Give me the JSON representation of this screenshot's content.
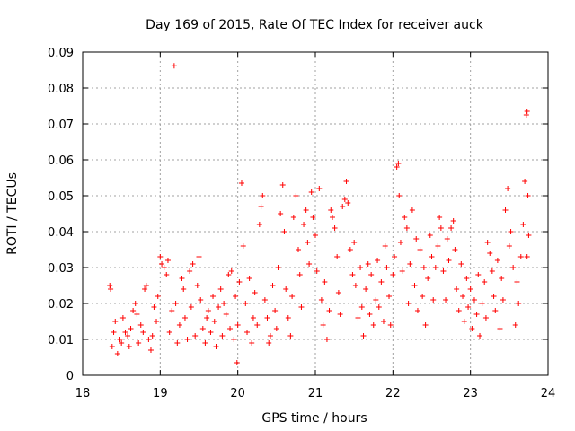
{
  "chart_data": {
    "type": "scatter",
    "title": "Day 169 of 2015, Rate Of TEC Index for receiver auck",
    "xlabel": "GPS time / hours",
    "ylabel": "ROTI / TECUs",
    "xlim": [
      18,
      24
    ],
    "ylim": [
      0,
      0.09
    ],
    "x_ticks": [
      "18",
      "19",
      "20",
      "21",
      "22",
      "23",
      "24"
    ],
    "y_ticks": [
      "0",
      "0.01",
      "0.02",
      "0.03",
      "0.04",
      "0.05",
      "0.06",
      "0.07",
      "0.08",
      "0.09"
    ],
    "x_tick_values": [
      18,
      19,
      20,
      21,
      22,
      23,
      24
    ],
    "y_tick_values": [
      0,
      0.01,
      0.02,
      0.03,
      0.04,
      0.05,
      0.06,
      0.07,
      0.08,
      0.09
    ],
    "grid": true,
    "marker": "+",
    "color": "#ff0000",
    "series": [
      {
        "points": [
          [
            18.35,
            0.025
          ],
          [
            18.36,
            0.024
          ],
          [
            18.38,
            0.008
          ],
          [
            18.4,
            0.012
          ],
          [
            18.42,
            0.015
          ],
          [
            18.45,
            0.006
          ],
          [
            18.48,
            0.01
          ],
          [
            18.5,
            0.009
          ],
          [
            18.52,
            0.016
          ],
          [
            18.55,
            0.012
          ],
          [
            18.58,
            0.011
          ],
          [
            18.6,
            0.008
          ],
          [
            18.62,
            0.013
          ],
          [
            18.65,
            0.018
          ],
          [
            18.68,
            0.02
          ],
          [
            18.7,
            0.017
          ],
          [
            18.72,
            0.009
          ],
          [
            18.75,
            0.014
          ],
          [
            18.78,
            0.012
          ],
          [
            18.8,
            0.024
          ],
          [
            18.82,
            0.025
          ],
          [
            18.85,
            0.01
          ],
          [
            18.88,
            0.007
          ],
          [
            18.9,
            0.011
          ],
          [
            18.92,
            0.019
          ],
          [
            18.95,
            0.015
          ],
          [
            18.97,
            0.022
          ],
          [
            19.0,
            0.033
          ],
          [
            19.02,
            0.031
          ],
          [
            19.05,
            0.03
          ],
          [
            19.08,
            0.028
          ],
          [
            19.1,
            0.032
          ],
          [
            19.12,
            0.012
          ],
          [
            19.15,
            0.018
          ],
          [
            19.18,
            0.0862
          ],
          [
            19.2,
            0.02
          ],
          [
            19.22,
            0.009
          ],
          [
            19.25,
            0.014
          ],
          [
            19.28,
            0.027
          ],
          [
            19.3,
            0.024
          ],
          [
            19.32,
            0.016
          ],
          [
            19.35,
            0.01
          ],
          [
            19.38,
            0.029
          ],
          [
            19.4,
            0.019
          ],
          [
            19.42,
            0.031
          ],
          [
            19.45,
            0.011
          ],
          [
            19.48,
            0.025
          ],
          [
            19.5,
            0.033
          ],
          [
            19.52,
            0.021
          ],
          [
            19.55,
            0.013
          ],
          [
            19.58,
            0.009
          ],
          [
            19.6,
            0.016
          ],
          [
            19.62,
            0.018
          ],
          [
            19.65,
            0.012
          ],
          [
            19.68,
            0.022
          ],
          [
            19.7,
            0.015
          ],
          [
            19.72,
            0.008
          ],
          [
            19.75,
            0.019
          ],
          [
            19.78,
            0.024
          ],
          [
            19.8,
            0.011
          ],
          [
            19.82,
            0.02
          ],
          [
            19.85,
            0.017
          ],
          [
            19.88,
            0.028
          ],
          [
            19.9,
            0.013
          ],
          [
            19.92,
            0.029
          ],
          [
            19.95,
            0.01
          ],
          [
            19.97,
            0.022
          ],
          [
            19.99,
            0.0035
          ],
          [
            20.0,
            0.014
          ],
          [
            20.02,
            0.026
          ],
          [
            20.05,
            0.0535
          ],
          [
            20.07,
            0.036
          ],
          [
            20.1,
            0.02
          ],
          [
            20.12,
            0.012
          ],
          [
            20.15,
            0.027
          ],
          [
            20.18,
            0.009
          ],
          [
            20.2,
            0.016
          ],
          [
            20.22,
            0.023
          ],
          [
            20.25,
            0.014
          ],
          [
            20.28,
            0.042
          ],
          [
            20.3,
            0.047
          ],
          [
            20.32,
            0.05
          ],
          [
            20.35,
            0.021
          ],
          [
            20.38,
            0.016
          ],
          [
            20.4,
            0.009
          ],
          [
            20.42,
            0.011
          ],
          [
            20.45,
            0.025
          ],
          [
            20.48,
            0.018
          ],
          [
            20.5,
            0.013
          ],
          [
            20.52,
            0.03
          ],
          [
            20.55,
            0.045
          ],
          [
            20.58,
            0.053
          ],
          [
            20.6,
            0.04
          ],
          [
            20.62,
            0.024
          ],
          [
            20.65,
            0.016
          ],
          [
            20.68,
            0.011
          ],
          [
            20.7,
            0.022
          ],
          [
            20.72,
            0.044
          ],
          [
            20.75,
            0.05
          ],
          [
            20.78,
            0.035
          ],
          [
            20.8,
            0.028
          ],
          [
            20.82,
            0.019
          ],
          [
            20.85,
            0.042
          ],
          [
            20.88,
            0.046
          ],
          [
            20.9,
            0.037
          ],
          [
            20.92,
            0.031
          ],
          [
            20.95,
            0.051
          ],
          [
            20.97,
            0.044
          ],
          [
            21.0,
            0.039
          ],
          [
            21.02,
            0.029
          ],
          [
            21.05,
            0.052
          ],
          [
            21.08,
            0.021
          ],
          [
            21.1,
            0.014
          ],
          [
            21.12,
            0.026
          ],
          [
            21.15,
            0.01
          ],
          [
            21.18,
            0.018
          ],
          [
            21.2,
            0.046
          ],
          [
            21.22,
            0.044
          ],
          [
            21.25,
            0.041
          ],
          [
            21.28,
            0.033
          ],
          [
            21.3,
            0.023
          ],
          [
            21.32,
            0.017
          ],
          [
            21.35,
            0.047
          ],
          [
            21.38,
            0.049
          ],
          [
            21.4,
            0.054
          ],
          [
            21.42,
            0.048
          ],
          [
            21.45,
            0.035
          ],
          [
            21.48,
            0.028
          ],
          [
            21.5,
            0.037
          ],
          [
            21.52,
            0.025
          ],
          [
            21.55,
            0.016
          ],
          [
            21.58,
            0.03
          ],
          [
            21.6,
            0.019
          ],
          [
            21.62,
            0.011
          ],
          [
            21.65,
            0.024
          ],
          [
            21.68,
            0.031
          ],
          [
            21.7,
            0.017
          ],
          [
            21.72,
            0.028
          ],
          [
            21.75,
            0.014
          ],
          [
            21.78,
            0.021
          ],
          [
            21.8,
            0.032
          ],
          [
            21.82,
            0.019
          ],
          [
            21.85,
            0.026
          ],
          [
            21.88,
            0.015
          ],
          [
            21.9,
            0.036
          ],
          [
            21.92,
            0.03
          ],
          [
            21.95,
            0.022
          ],
          [
            21.97,
            0.014
          ],
          [
            22.0,
            0.028
          ],
          [
            22.02,
            0.033
          ],
          [
            22.05,
            0.058
          ],
          [
            22.07,
            0.059
          ],
          [
            22.08,
            0.05
          ],
          [
            22.1,
            0.037
          ],
          [
            22.12,
            0.029
          ],
          [
            22.15,
            0.044
          ],
          [
            22.18,
            0.041
          ],
          [
            22.2,
            0.02
          ],
          [
            22.22,
            0.031
          ],
          [
            22.25,
            0.046
          ],
          [
            22.28,
            0.025
          ],
          [
            22.3,
            0.038
          ],
          [
            22.32,
            0.018
          ],
          [
            22.35,
            0.035
          ],
          [
            22.38,
            0.022
          ],
          [
            22.4,
            0.03
          ],
          [
            22.42,
            0.014
          ],
          [
            22.45,
            0.027
          ],
          [
            22.48,
            0.039
          ],
          [
            22.5,
            0.033
          ],
          [
            22.52,
            0.021
          ],
          [
            22.55,
            0.03
          ],
          [
            22.58,
            0.036
          ],
          [
            22.6,
            0.044
          ],
          [
            22.62,
            0.041
          ],
          [
            22.65,
            0.029
          ],
          [
            22.68,
            0.021
          ],
          [
            22.7,
            0.038
          ],
          [
            22.72,
            0.032
          ],
          [
            22.75,
            0.041
          ],
          [
            22.78,
            0.043
          ],
          [
            22.8,
            0.035
          ],
          [
            22.82,
            0.024
          ],
          [
            22.85,
            0.018
          ],
          [
            22.88,
            0.031
          ],
          [
            22.9,
            0.022
          ],
          [
            22.92,
            0.015
          ],
          [
            22.95,
            0.027
          ],
          [
            22.97,
            0.019
          ],
          [
            23.0,
            0.024
          ],
          [
            23.02,
            0.013
          ],
          [
            23.05,
            0.021
          ],
          [
            23.08,
            0.017
          ],
          [
            23.1,
            0.028
          ],
          [
            23.12,
            0.011
          ],
          [
            23.15,
            0.02
          ],
          [
            23.18,
            0.026
          ],
          [
            23.2,
            0.016
          ],
          [
            23.22,
            0.037
          ],
          [
            23.25,
            0.034
          ],
          [
            23.28,
            0.029
          ],
          [
            23.3,
            0.022
          ],
          [
            23.32,
            0.018
          ],
          [
            23.35,
            0.032
          ],
          [
            23.38,
            0.013
          ],
          [
            23.4,
            0.027
          ],
          [
            23.42,
            0.021
          ],
          [
            23.45,
            0.046
          ],
          [
            23.48,
            0.052
          ],
          [
            23.5,
            0.036
          ],
          [
            23.52,
            0.04
          ],
          [
            23.55,
            0.03
          ],
          [
            23.58,
            0.014
          ],
          [
            23.6,
            0.026
          ],
          [
            23.62,
            0.02
          ],
          [
            23.65,
            0.033
          ],
          [
            23.68,
            0.042
          ],
          [
            23.7,
            0.054
          ],
          [
            23.72,
            0.0725
          ],
          [
            23.73,
            0.0735
          ],
          [
            23.74,
            0.05
          ],
          [
            23.75,
            0.039
          ],
          [
            23.73,
            0.033
          ]
        ]
      }
    ]
  }
}
